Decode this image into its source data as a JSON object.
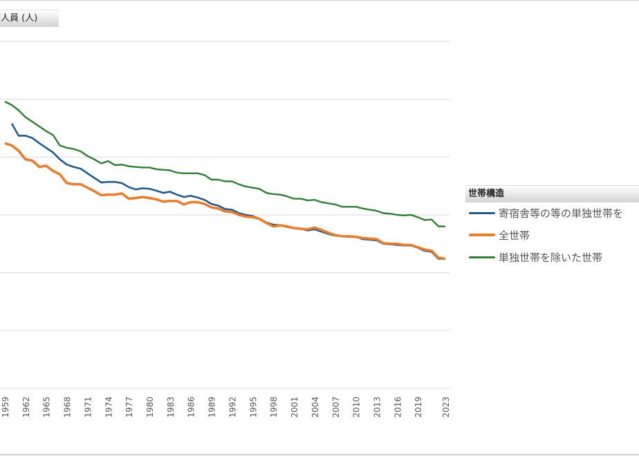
{
  "y_axis_header": "帯人員 (人)",
  "legend": {
    "title": "世帯構造",
    "items": [
      {
        "label": "寄宿舎等の等の単独世帯を",
        "color": "#1f5a8c"
      },
      {
        "label": "全世帯",
        "color": "#e87d2e"
      },
      {
        "label": "単独世帯を除いた世帯",
        "color": "#2e7d32"
      }
    ]
  },
  "chart_data": {
    "type": "line",
    "title": "",
    "xlabel": "",
    "ylabel": "帯人員 (人)",
    "tick_labels": [
      "1959",
      "1962",
      "1965",
      "1968",
      "1971",
      "1974",
      "1977",
      "1980",
      "1983",
      "1986",
      "1989",
      "1992",
      "1995",
      "1998",
      "2001",
      "2004",
      "2007",
      "2010",
      "2013",
      "2016",
      "2019",
      "2023"
    ],
    "grid": true,
    "ylim": [
      0,
      6
    ],
    "legend_position": "right",
    "series": [
      {
        "name": "寄宿舎等の等の単独世帯を",
        "color": "#1f5a8c",
        "x": [
          1960,
          1961,
          1962,
          1963,
          1964,
          1965,
          1966,
          1967,
          1968,
          1969,
          1970,
          1971,
          1972,
          1973,
          1974,
          1975,
          1976,
          1977,
          1978,
          1979,
          1980,
          1981,
          1982,
          1983,
          1984,
          1985,
          1986,
          1987,
          1988,
          1989,
          1990,
          1991,
          1992,
          1993,
          1994,
          1995,
          1996,
          1997,
          1998,
          1999,
          2000,
          2001,
          2002,
          2003,
          2004,
          2005,
          2006,
          2007,
          2008,
          2009,
          2010,
          2011,
          2012,
          2013,
          2014,
          2015,
          2016,
          2017,
          2018,
          2019,
          2020,
          2021,
          2022,
          2023
        ],
        "values": [
          4.58,
          4.37,
          4.37,
          4.33,
          4.24,
          4.16,
          4.08,
          3.96,
          3.87,
          3.83,
          3.8,
          3.72,
          3.64,
          3.56,
          3.57,
          3.57,
          3.55,
          3.48,
          3.44,
          3.46,
          3.45,
          3.42,
          3.38,
          3.4,
          3.35,
          3.31,
          3.33,
          3.3,
          3.26,
          3.19,
          3.16,
          3.1,
          3.09,
          3.03,
          3.0,
          2.98,
          2.93,
          2.87,
          2.83,
          2.82,
          2.79,
          2.77,
          2.76,
          2.73,
          2.75,
          2.71,
          2.67,
          2.64,
          2.63,
          2.62,
          2.62,
          2.58,
          2.57,
          2.56,
          2.5,
          2.49,
          2.48,
          2.47,
          2.47,
          2.43,
          2.38,
          2.36,
          2.24,
          2.24
        ]
      },
      {
        "name": "全世帯",
        "color": "#e87d2e",
        "x": [
          1959,
          1960,
          1961,
          1962,
          1963,
          1964,
          1965,
          1966,
          1967,
          1968,
          1969,
          1970,
          1971,
          1972,
          1973,
          1974,
          1975,
          1976,
          1977,
          1978,
          1979,
          1980,
          1981,
          1982,
          1983,
          1984,
          1985,
          1986,
          1987,
          1988,
          1989,
          1990,
          1991,
          1992,
          1993,
          1994,
          1995,
          1996,
          1997,
          1998,
          1999,
          2000,
          2001,
          2002,
          2003,
          2004,
          2005,
          2006,
          2007,
          2008,
          2009,
          2010,
          2011,
          2012,
          2013,
          2014,
          2015,
          2016,
          2017,
          2018,
          2019,
          2020,
          2021,
          2022,
          2023
        ],
        "values": [
          4.24,
          4.2,
          4.11,
          3.96,
          3.94,
          3.83,
          3.85,
          3.76,
          3.7,
          3.55,
          3.53,
          3.53,
          3.47,
          3.41,
          3.34,
          3.35,
          3.35,
          3.37,
          3.28,
          3.29,
          3.31,
          3.29,
          3.27,
          3.23,
          3.24,
          3.24,
          3.18,
          3.22,
          3.22,
          3.19,
          3.13,
          3.11,
          3.06,
          3.05,
          3.0,
          2.97,
          2.96,
          2.93,
          2.86,
          2.8,
          2.82,
          2.8,
          2.77,
          2.76,
          2.75,
          2.78,
          2.74,
          2.69,
          2.65,
          2.63,
          2.63,
          2.62,
          2.6,
          2.59,
          2.58,
          2.51,
          2.5,
          2.5,
          2.48,
          2.48,
          2.44,
          2.4,
          2.38,
          2.26,
          2.24
        ]
      },
      {
        "name": "単独世帯を除いた世帯",
        "color": "#2e7d32",
        "x": [
          1959,
          1960,
          1961,
          1962,
          1963,
          1964,
          1965,
          1966,
          1967,
          1968,
          1969,
          1970,
          1971,
          1972,
          1973,
          1974,
          1975,
          1976,
          1977,
          1978,
          1979,
          1980,
          1981,
          1982,
          1983,
          1984,
          1985,
          1986,
          1987,
          1988,
          1989,
          1990,
          1991,
          1992,
          1993,
          1994,
          1995,
          1996,
          1997,
          1998,
          1999,
          2000,
          2001,
          2002,
          2003,
          2004,
          2005,
          2006,
          2007,
          2008,
          2009,
          2010,
          2011,
          2012,
          2013,
          2014,
          2015,
          2016,
          2017,
          2018,
          2019,
          2020,
          2021,
          2022,
          2023
        ],
        "values": [
          4.96,
          4.9,
          4.81,
          4.69,
          4.61,
          4.53,
          4.45,
          4.38,
          4.2,
          4.16,
          4.14,
          4.1,
          4.02,
          3.96,
          3.89,
          3.93,
          3.86,
          3.87,
          3.84,
          3.83,
          3.82,
          3.82,
          3.79,
          3.78,
          3.77,
          3.73,
          3.72,
          3.72,
          3.72,
          3.69,
          3.61,
          3.61,
          3.58,
          3.58,
          3.53,
          3.49,
          3.47,
          3.45,
          3.38,
          3.36,
          3.35,
          3.32,
          3.28,
          3.28,
          3.25,
          3.26,
          3.22,
          3.2,
          3.18,
          3.14,
          3.14,
          3.14,
          3.11,
          3.09,
          3.07,
          3.03,
          3.02,
          3.0,
          2.99,
          3.0,
          2.96,
          2.91,
          2.92,
          2.8,
          2.8
        ]
      }
    ]
  }
}
